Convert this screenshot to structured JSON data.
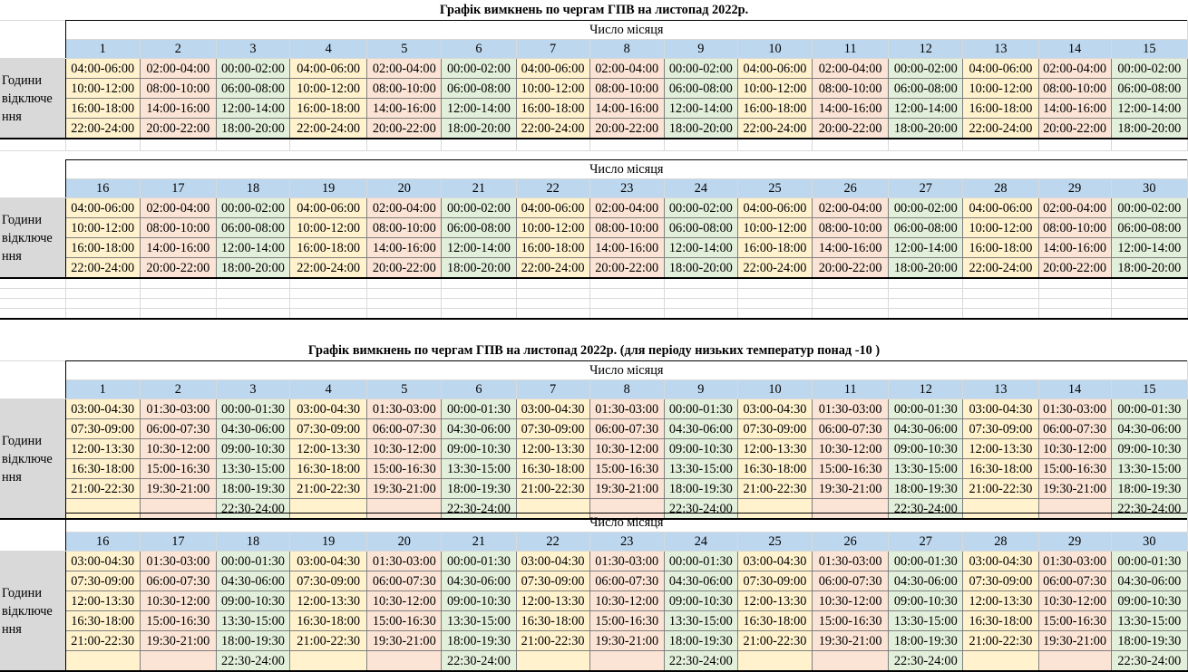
{
  "sections": [
    {
      "title": "Графік вимкнень по чергам ГПВ на листопад 2022р.",
      "blocks": [
        {
          "subheader": "Число місяця",
          "days": [
            "1",
            "2",
            "3",
            "4",
            "5",
            "6",
            "7",
            "8",
            "9",
            "10",
            "11",
            "12",
            "13",
            "14",
            "15"
          ],
          "label": "Години відключе ння",
          "groups": [
            "orange",
            "pink",
            "green",
            "orange",
            "pink",
            "green",
            "orange",
            "pink",
            "green",
            "orange",
            "pink",
            "green",
            "orange",
            "pink",
            "green"
          ],
          "rows": [
            [
              "04:00-06:00",
              "02:00-04:00",
              "00:00-02:00",
              "04:00-06:00",
              "02:00-04:00",
              "00:00-02:00",
              "04:00-06:00",
              "02:00-04:00",
              "00:00-02:00",
              "04:00-06:00",
              "02:00-04:00",
              "00:00-02:00",
              "04:00-06:00",
              "02:00-04:00",
              "00:00-02:00"
            ],
            [
              "10:00-12:00",
              "08:00-10:00",
              "06:00-08:00",
              "10:00-12:00",
              "08:00-10:00",
              "06:00-08:00",
              "10:00-12:00",
              "08:00-10:00",
              "06:00-08:00",
              "10:00-12:00",
              "08:00-10:00",
              "06:00-08:00",
              "10:00-12:00",
              "08:00-10:00",
              "06:00-08:00"
            ],
            [
              "16:00-18:00",
              "14:00-16:00",
              "12:00-14:00",
              "16:00-18:00",
              "14:00-16:00",
              "12:00-14:00",
              "16:00-18:00",
              "14:00-16:00",
              "12:00-14:00",
              "16:00-18:00",
              "14:00-16:00",
              "12:00-14:00",
              "16:00-18:00",
              "14:00-16:00",
              "12:00-14:00"
            ],
            [
              "22:00-24:00",
              "20:00-22:00",
              "18:00-20:00",
              "22:00-24:00",
              "20:00-22:00",
              "18:00-20:00",
              "22:00-24:00",
              "20:00-22:00",
              "18:00-20:00",
              "22:00-24:00",
              "20:00-22:00",
              "18:00-20:00",
              "22:00-24:00",
              "20:00-22:00",
              "18:00-20:00"
            ]
          ]
        },
        {
          "subheader": "Число місяця",
          "days": [
            "16",
            "17",
            "18",
            "19",
            "20",
            "21",
            "22",
            "23",
            "24",
            "25",
            "26",
            "27",
            "28",
            "29",
            "30"
          ],
          "label": "Години відключе ння",
          "groups": [
            "orange",
            "pink",
            "green",
            "orange",
            "pink",
            "green",
            "orange",
            "pink",
            "green",
            "orange",
            "pink",
            "green",
            "orange",
            "pink",
            "green"
          ],
          "rows": [
            [
              "04:00-06:00",
              "02:00-04:00",
              "00:00-02:00",
              "04:00-06:00",
              "02:00-04:00",
              "00:00-02:00",
              "04:00-06:00",
              "02:00-04:00",
              "00:00-02:00",
              "04:00-06:00",
              "02:00-04:00",
              "00:00-02:00",
              "04:00-06:00",
              "02:00-04:00",
              "00:00-02:00"
            ],
            [
              "10:00-12:00",
              "08:00-10:00",
              "06:00-08:00",
              "10:00-12:00",
              "08:00-10:00",
              "06:00-08:00",
              "10:00-12:00",
              "08:00-10:00",
              "06:00-08:00",
              "10:00-12:00",
              "08:00-10:00",
              "06:00-08:00",
              "10:00-12:00",
              "08:00-10:00",
              "06:00-08:00"
            ],
            [
              "16:00-18:00",
              "14:00-16:00",
              "12:00-14:00",
              "16:00-18:00",
              "14:00-16:00",
              "12:00-14:00",
              "16:00-18:00",
              "14:00-16:00",
              "12:00-14:00",
              "16:00-18:00",
              "14:00-16:00",
              "12:00-14:00",
              "16:00-18:00",
              "14:00-16:00",
              "12:00-14:00"
            ],
            [
              "22:00-24:00",
              "20:00-22:00",
              "18:00-20:00",
              "22:00-24:00",
              "20:00-22:00",
              "18:00-20:00",
              "22:00-24:00",
              "20:00-22:00",
              "18:00-20:00",
              "22:00-24:00",
              "20:00-22:00",
              "18:00-20:00",
              "22:00-24:00",
              "20:00-22:00",
              "18:00-20:00"
            ]
          ]
        }
      ]
    },
    {
      "title": "Графік вимкнень по чергам ГПВ на листопад 2022р. (для періоду низьких температур понад -10 )",
      "blocks": [
        {
          "subheader": "Число місяця",
          "days": [
            "1",
            "2",
            "3",
            "4",
            "5",
            "6",
            "7",
            "8",
            "9",
            "10",
            "11",
            "12",
            "13",
            "14",
            "15"
          ],
          "label": "Години відключе ння",
          "groups": [
            "orange",
            "pink",
            "green",
            "orange",
            "pink",
            "green",
            "orange",
            "pink",
            "green",
            "orange",
            "pink",
            "green",
            "orange",
            "pink",
            "green"
          ],
          "rows": [
            [
              "03:00-04:30",
              "01:30-03:00",
              "00:00-01:30",
              "03:00-04:30",
              "01:30-03:00",
              "00:00-01:30",
              "03:00-04:30",
              "01:30-03:00",
              "00:00-01:30",
              "03:00-04:30",
              "01:30-03:00",
              "00:00-01:30",
              "03:00-04:30",
              "01:30-03:00",
              "00:00-01:30"
            ],
            [
              "07:30-09:00",
              "06:00-07:30",
              "04:30-06:00",
              "07:30-09:00",
              "06:00-07:30",
              "04:30-06:00",
              "07:30-09:00",
              "06:00-07:30",
              "04:30-06:00",
              "07:30-09:00",
              "06:00-07:30",
              "04:30-06:00",
              "07:30-09:00",
              "06:00-07:30",
              "04:30-06:00"
            ],
            [
              "12:00-13:30",
              "10:30-12:00",
              "09:00-10:30",
              "12:00-13:30",
              "10:30-12:00",
              "09:00-10:30",
              "12:00-13:30",
              "10:30-12:00",
              "09:00-10:30",
              "12:00-13:30",
              "10:30-12:00",
              "09:00-10:30",
              "12:00-13:30",
              "10:30-12:00",
              "09:00-10:30"
            ],
            [
              "16:30-18:00",
              "15:00-16:30",
              "13:30-15:00",
              "16:30-18:00",
              "15:00-16:30",
              "13:30-15:00",
              "16:30-18:00",
              "15:00-16:30",
              "13:30-15:00",
              "16:30-18:00",
              "15:00-16:30",
              "13:30-15:00",
              "16:30-18:00",
              "15:00-16:30",
              "13:30-15:00"
            ],
            [
              "21:00-22:30",
              "19:30-21:00",
              "18:00-19:30",
              "21:00-22:30",
              "19:30-21:00",
              "18:00-19:30",
              "21:00-22:30",
              "19:30-21:00",
              "18:00-19:30",
              "21:00-22:30",
              "19:30-21:00",
              "18:00-19:30",
              "21:00-22:30",
              "19:30-21:00",
              "18:00-19:30"
            ],
            [
              "",
              "",
              "22:30-24:00",
              "",
              "",
              "22:30-24:00",
              "",
              "",
              "22:30-24:00",
              "",
              "",
              "22:30-24:00",
              "",
              "",
              "22:30-24:00"
            ]
          ]
        },
        {
          "subheader": "Число місяця",
          "days": [
            "16",
            "17",
            "18",
            "19",
            "20",
            "21",
            "22",
            "23",
            "24",
            "25",
            "26",
            "27",
            "28",
            "29",
            "30"
          ],
          "label": "Години відключе ння",
          "groups": [
            "orange",
            "pink",
            "green",
            "orange",
            "pink",
            "green",
            "orange",
            "pink",
            "green",
            "orange",
            "pink",
            "green",
            "orange",
            "pink",
            "green"
          ],
          "rows": [
            [
              "03:00-04:30",
              "01:30-03:00",
              "00:00-01:30",
              "03:00-04:30",
              "01:30-03:00",
              "00:00-01:30",
              "03:00-04:30",
              "01:30-03:00",
              "00:00-01:30",
              "03:00-04:30",
              "01:30-03:00",
              "00:00-01:30",
              "03:00-04:30",
              "01:30-03:00",
              "00:00-01:30"
            ],
            [
              "07:30-09:00",
              "06:00-07:30",
              "04:30-06:00",
              "07:30-09:00",
              "06:00-07:30",
              "04:30-06:00",
              "07:30-09:00",
              "06:00-07:30",
              "04:30-06:00",
              "07:30-09:00",
              "06:00-07:30",
              "04:30-06:00",
              "07:30-09:00",
              "06:00-07:30",
              "04:30-06:00"
            ],
            [
              "12:00-13:30",
              "10:30-12:00",
              "09:00-10:30",
              "12:00-13:30",
              "10:30-12:00",
              "09:00-10:30",
              "12:00-13:30",
              "10:30-12:00",
              "09:00-10:30",
              "12:00-13:30",
              "10:30-12:00",
              "09:00-10:30",
              "12:00-13:30",
              "10:30-12:00",
              "09:00-10:30"
            ],
            [
              "16:30-18:00",
              "15:00-16:30",
              "13:30-15:00",
              "16:30-18:00",
              "15:00-16:30",
              "13:30-15:00",
              "16:30-18:00",
              "15:00-16:30",
              "13:30-15:00",
              "16:30-18:00",
              "15:00-16:30",
              "13:30-15:00",
              "16:30-18:00",
              "15:00-16:30",
              "13:30-15:00"
            ],
            [
              "21:00-22:30",
              "19:30-21:00",
              "18:00-19:30",
              "21:00-22:30",
              "19:30-21:00",
              "18:00-19:30",
              "21:00-22:30",
              "19:30-21:00",
              "18:00-19:30",
              "21:00-22:30",
              "19:30-21:00",
              "18:00-19:30",
              "21:00-22:30",
              "19:30-21:00",
              "18:00-19:30"
            ],
            [
              "",
              "",
              "22:30-24:00",
              "",
              "",
              "22:30-24:00",
              "",
              "",
              "22:30-24:00",
              "",
              "",
              "22:30-24:00",
              "",
              "",
              "22:30-24:00"
            ]
          ]
        }
      ]
    }
  ]
}
